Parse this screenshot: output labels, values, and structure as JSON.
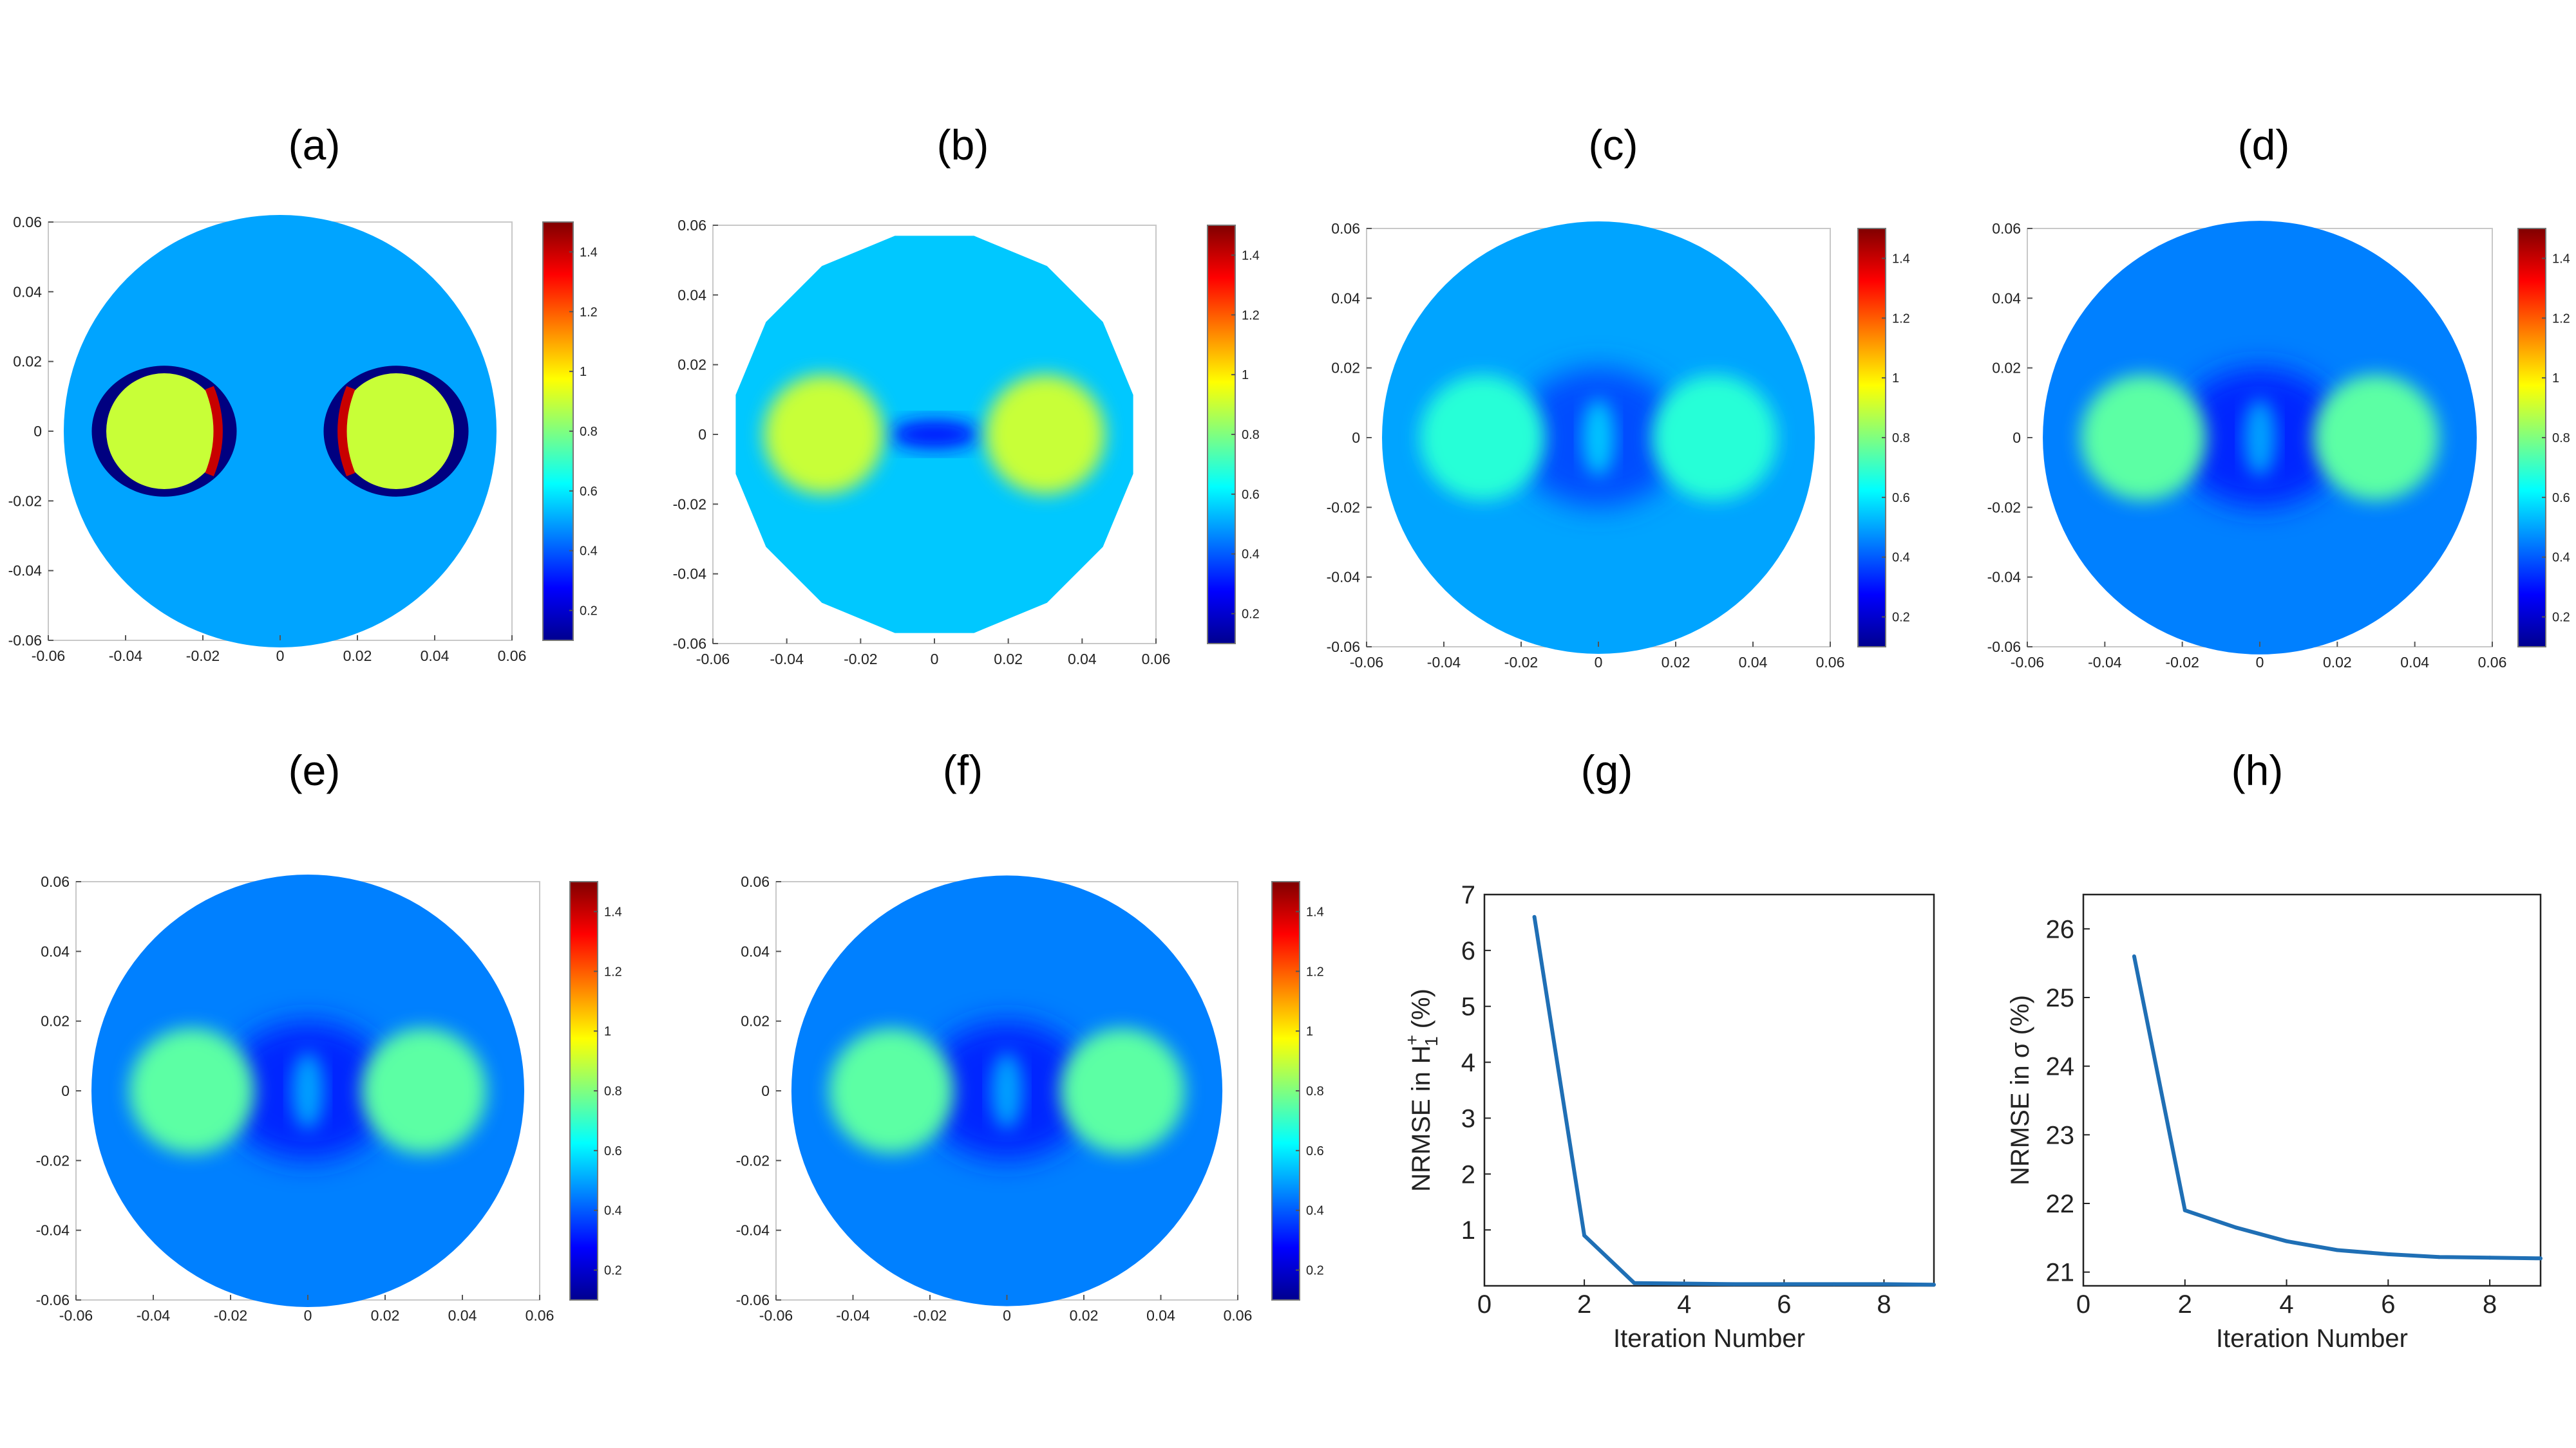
{
  "colors": {
    "background": "#ffffff",
    "line": "#1f6fb5",
    "field_blue": "#2e8fe6",
    "inclusion_yellow": "#d4e85a",
    "inclusion_green": "#6ee0a8",
    "ring_navy": "#0a0a8a",
    "artifact_red": "#b31212"
  },
  "map_axes": {
    "x_ticks": [
      "-0.06",
      "-0.04",
      "-0.02",
      "0",
      "0.02",
      "0.04",
      "0.06"
    ],
    "y_ticks": [
      "0.06",
      "0.04",
      "0.02",
      "0",
      "-0.02",
      "-0.04",
      "-0.06"
    ],
    "colorbar_ticks": [
      "1.4",
      "1.2",
      "1",
      "0.8",
      "0.6",
      "0.4",
      "0.2"
    ]
  },
  "chart_data": [
    {
      "panel": "(a)",
      "type": "heatmap",
      "xlim": [
        -0.06,
        0.06
      ],
      "ylim": [
        -0.06,
        0.06
      ],
      "clim": [
        0.1,
        1.5
      ],
      "background_value": 0.5,
      "inclusion_value": 0.9,
      "inclusion_centers": [
        [
          -0.03,
          0
        ],
        [
          0.03,
          0
        ]
      ],
      "inclusion_radius": 0.015,
      "boundary_ring_value": 0.1,
      "boundary_artifact_value": 1.4
    },
    {
      "panel": "(b)",
      "type": "heatmap",
      "xlim": [
        -0.06,
        0.06
      ],
      "ylim": [
        -0.06,
        0.06
      ],
      "clim": [
        0.1,
        1.5
      ],
      "background_value": 0.55,
      "inclusion_value": 0.9,
      "inclusion_centers": [
        [
          -0.03,
          0
        ],
        [
          0.03,
          0
        ]
      ],
      "inclusion_radius": 0.015
    },
    {
      "panel": "(c)",
      "type": "heatmap",
      "xlim": [
        -0.06,
        0.06
      ],
      "ylim": [
        -0.06,
        0.06
      ],
      "clim": [
        0.1,
        1.5
      ],
      "background_value": 0.5,
      "inclusion_value": 0.68,
      "inclusion_centers": [
        [
          -0.03,
          0
        ],
        [
          0.03,
          0
        ]
      ],
      "inclusion_radius": 0.015
    },
    {
      "panel": "(d)",
      "type": "heatmap",
      "xlim": [
        -0.06,
        0.06
      ],
      "ylim": [
        -0.06,
        0.06
      ],
      "clim": [
        0.1,
        1.5
      ],
      "background_value": 0.45,
      "inclusion_value": 0.75,
      "inclusion_centers": [
        [
          -0.03,
          0
        ],
        [
          0.03,
          0
        ]
      ],
      "inclusion_radius": 0.015
    },
    {
      "panel": "(e)",
      "type": "heatmap",
      "xlim": [
        -0.06,
        0.06
      ],
      "ylim": [
        -0.06,
        0.06
      ],
      "clim": [
        0.1,
        1.5
      ],
      "background_value": 0.45,
      "inclusion_value": 0.75,
      "inclusion_centers": [
        [
          -0.03,
          0
        ],
        [
          0.03,
          0
        ]
      ],
      "inclusion_radius": 0.015
    },
    {
      "panel": "(f)",
      "type": "heatmap",
      "xlim": [
        -0.06,
        0.06
      ],
      "ylim": [
        -0.06,
        0.06
      ],
      "clim": [
        0.1,
        1.5
      ],
      "background_value": 0.45,
      "inclusion_value": 0.75,
      "inclusion_centers": [
        [
          -0.03,
          0
        ],
        [
          0.03,
          0
        ]
      ],
      "inclusion_radius": 0.015
    },
    {
      "panel": "(g)",
      "type": "line",
      "x": [
        1,
        2,
        3,
        4,
        5,
        6,
        7,
        8,
        9
      ],
      "y": [
        6.6,
        0.9,
        0.05,
        0.04,
        0.03,
        0.03,
        0.03,
        0.03,
        0.02
      ],
      "xlim": [
        0,
        9
      ],
      "ylim": [
        0,
        7
      ],
      "xticks": [
        0,
        2,
        4,
        6,
        8
      ],
      "yticks": [
        1,
        2,
        3,
        4,
        5,
        6,
        7
      ],
      "xlabel": "Iteration Number",
      "ylabel_prefix": "NRMSE in",
      "ylabel_sym": "H",
      "ylabel_sup": "+",
      "ylabel_sub": "1",
      "ylabel_suffix": "(%)"
    },
    {
      "panel": "(h)",
      "type": "line",
      "x": [
        1,
        2,
        3,
        4,
        5,
        6,
        7,
        8,
        9
      ],
      "y": [
        25.6,
        21.9,
        21.65,
        21.45,
        21.32,
        21.26,
        21.22,
        21.21,
        21.2
      ],
      "xlim": [
        0,
        9
      ],
      "ylim": [
        20.8,
        26.5
      ],
      "xticks": [
        0,
        2,
        4,
        6,
        8
      ],
      "yticks": [
        21,
        22,
        23,
        24,
        25,
        26
      ],
      "xlabel": "Iteration Number",
      "ylabel": "NRMSE in σ (%)"
    }
  ]
}
